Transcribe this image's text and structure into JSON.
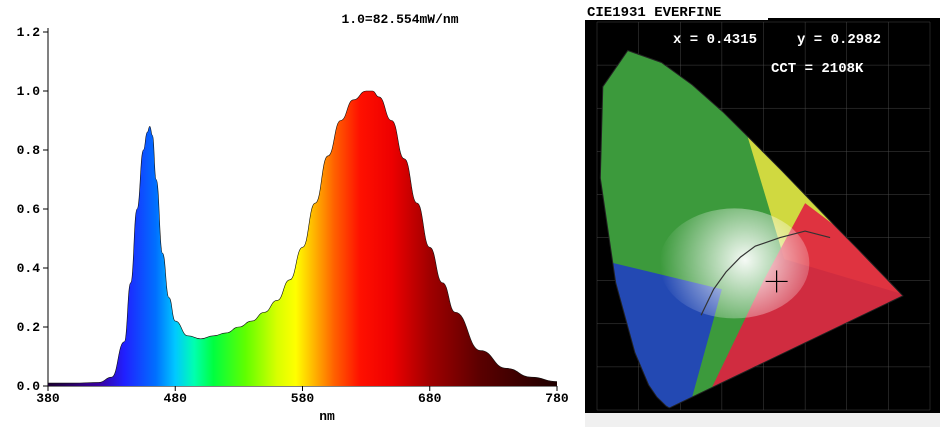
{
  "chart_data": [
    {
      "type": "area",
      "annotation": "1.0=82.554mW/nm",
      "xlabel": "nm",
      "ylabel": "",
      "xlim": [
        380,
        780
      ],
      "ylim": [
        0,
        1.2
      ],
      "x_ticks": [
        "380",
        "480",
        "580",
        "680",
        "780"
      ],
      "y_ticks": [
        "0.0",
        "0.2",
        "0.4",
        "0.6",
        "0.8",
        "1.0",
        "1.2"
      ],
      "grid": false,
      "series": [
        {
          "fill": "visible-spectrum",
          "x": [
            380,
            400,
            420,
            430,
            440,
            445,
            450,
            455,
            458,
            460,
            462,
            465,
            470,
            475,
            480,
            490,
            500,
            510,
            520,
            530,
            540,
            550,
            560,
            570,
            580,
            590,
            600,
            610,
            620,
            630,
            635,
            640,
            650,
            660,
            670,
            680,
            690,
            700,
            720,
            740,
            760,
            780
          ],
          "y": [
            0.01,
            0.01,
            0.012,
            0.03,
            0.15,
            0.35,
            0.6,
            0.8,
            0.86,
            0.88,
            0.85,
            0.7,
            0.45,
            0.3,
            0.22,
            0.17,
            0.16,
            0.17,
            0.18,
            0.2,
            0.22,
            0.25,
            0.29,
            0.36,
            0.47,
            0.62,
            0.78,
            0.9,
            0.97,
            1.0,
            1.0,
            0.98,
            0.9,
            0.77,
            0.62,
            0.47,
            0.35,
            0.25,
            0.12,
            0.06,
            0.03,
            0.015
          ]
        }
      ]
    },
    {
      "type": "scatter",
      "title": "CIE1931 EVERFINE",
      "chromaticity": {
        "x_label": "x = 0.4315",
        "y_label": "y = 0.2982",
        "x": 0.4315,
        "y": 0.2982
      },
      "cct_label": "CCT = 2108K",
      "xlim": [
        0,
        0.8
      ],
      "ylim": [
        0,
        0.9
      ],
      "locus_colors": {
        "green": "#3c9a3c",
        "yellow": "#e0e040",
        "red": "#e02040",
        "blue": "#2040c0",
        "white": "#f4f4f4"
      },
      "background": "#000000"
    }
  ]
}
